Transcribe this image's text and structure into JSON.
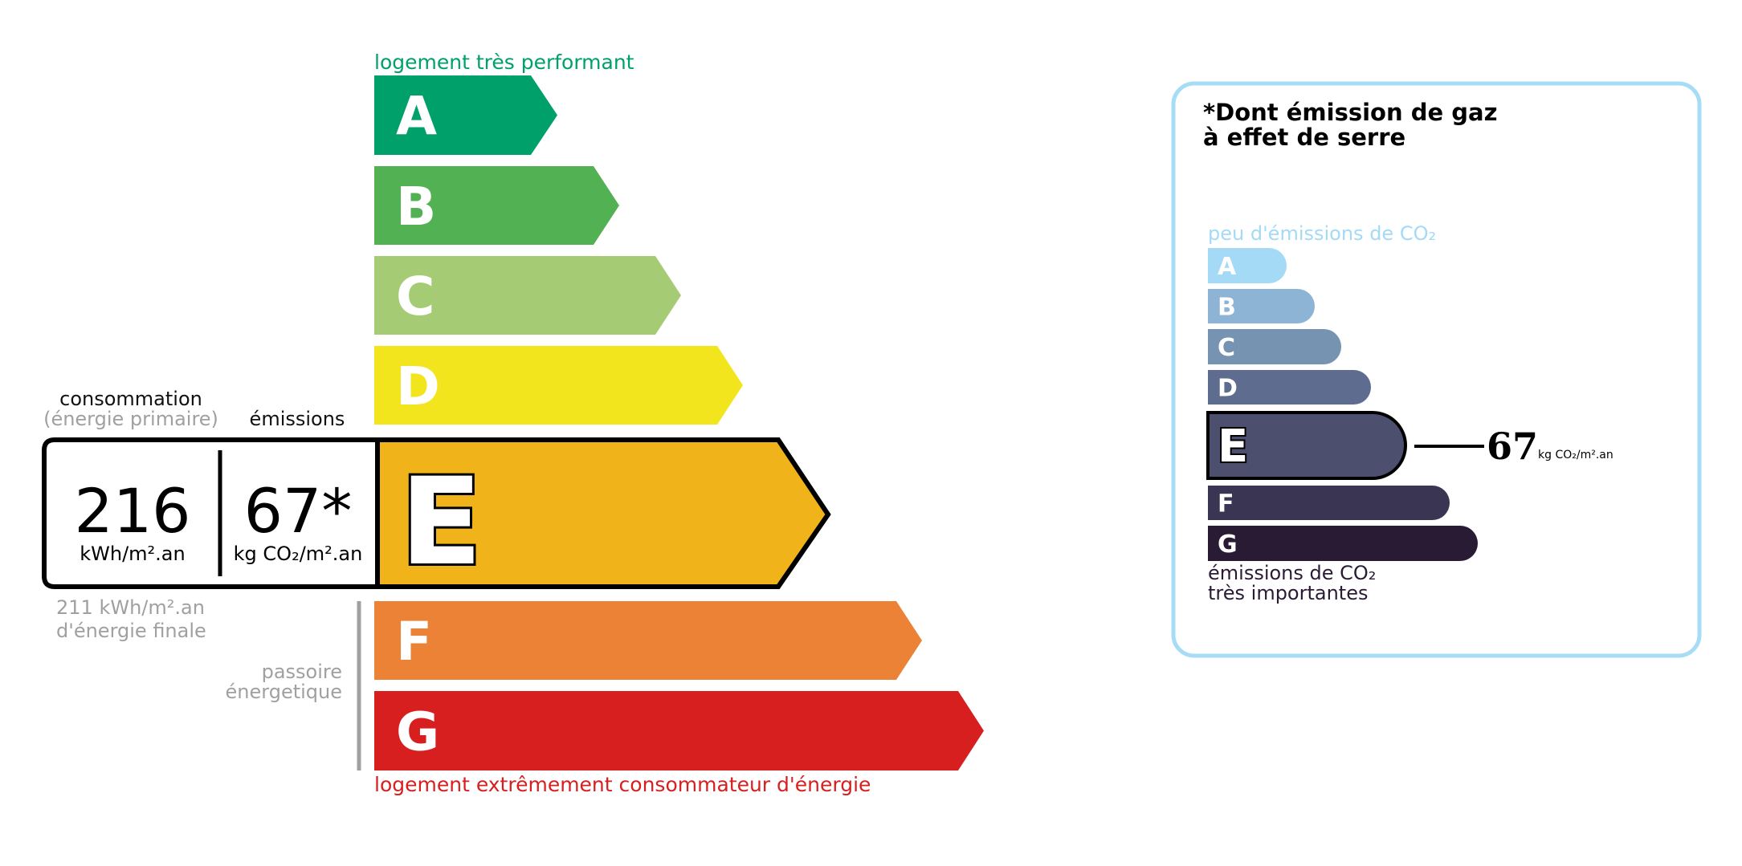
{
  "energy": {
    "top_label": "logement très performant",
    "bottom_label": "logement extrêmement consommateur d'énergie",
    "classes": [
      {
        "letter": "A",
        "color": "#00a06b"
      },
      {
        "letter": "B",
        "color": "#52b153"
      },
      {
        "letter": "C",
        "color": "#a5cc74"
      },
      {
        "letter": "D",
        "color": "#f2e51d"
      },
      {
        "letter": "E",
        "color": "#f0b41a"
      },
      {
        "letter": "F",
        "color": "#ec8236"
      },
      {
        "letter": "G",
        "color": "#d71f20"
      }
    ],
    "current_class": "E",
    "consumption_label": "consommation",
    "consumption_sublabel": "(énergie primaire)",
    "emissions_label": "émissions",
    "consumption_value": "216",
    "consumption_unit": "kWh/m².an",
    "emissions_value": "67*",
    "emissions_unit": "kg CO₂/m².an",
    "final_energy_value": "211 kWh/m².an",
    "final_energy_label": "d'énergie finale",
    "passoire_line1": "passoire",
    "passoire_line2": "énergetique",
    "top_label_color": "#00a06b",
    "bottom_label_color": "#d71f20"
  },
  "ghg": {
    "title_line1": "*Dont émission de gaz",
    "title_line2": "à effet de serre",
    "top_label": "peu d'émissions de CO₂",
    "bottom_label_line1": "émissions de CO₂",
    "bottom_label_line2": "très importantes",
    "classes": [
      {
        "letter": "A",
        "color": "#a4daf6"
      },
      {
        "letter": "B",
        "color": "#8db4d5"
      },
      {
        "letter": "C",
        "color": "#7793b2"
      },
      {
        "letter": "D",
        "color": "#5e6d8f"
      },
      {
        "letter": "E",
        "color": "#4c4f6d"
      },
      {
        "letter": "F",
        "color": "#3a3552"
      },
      {
        "letter": "G",
        "color": "#2a1b35"
      }
    ],
    "current_class": "E",
    "value": "67",
    "unit": "kg CO₂/m².an",
    "border_color": "#a6dcf5"
  }
}
